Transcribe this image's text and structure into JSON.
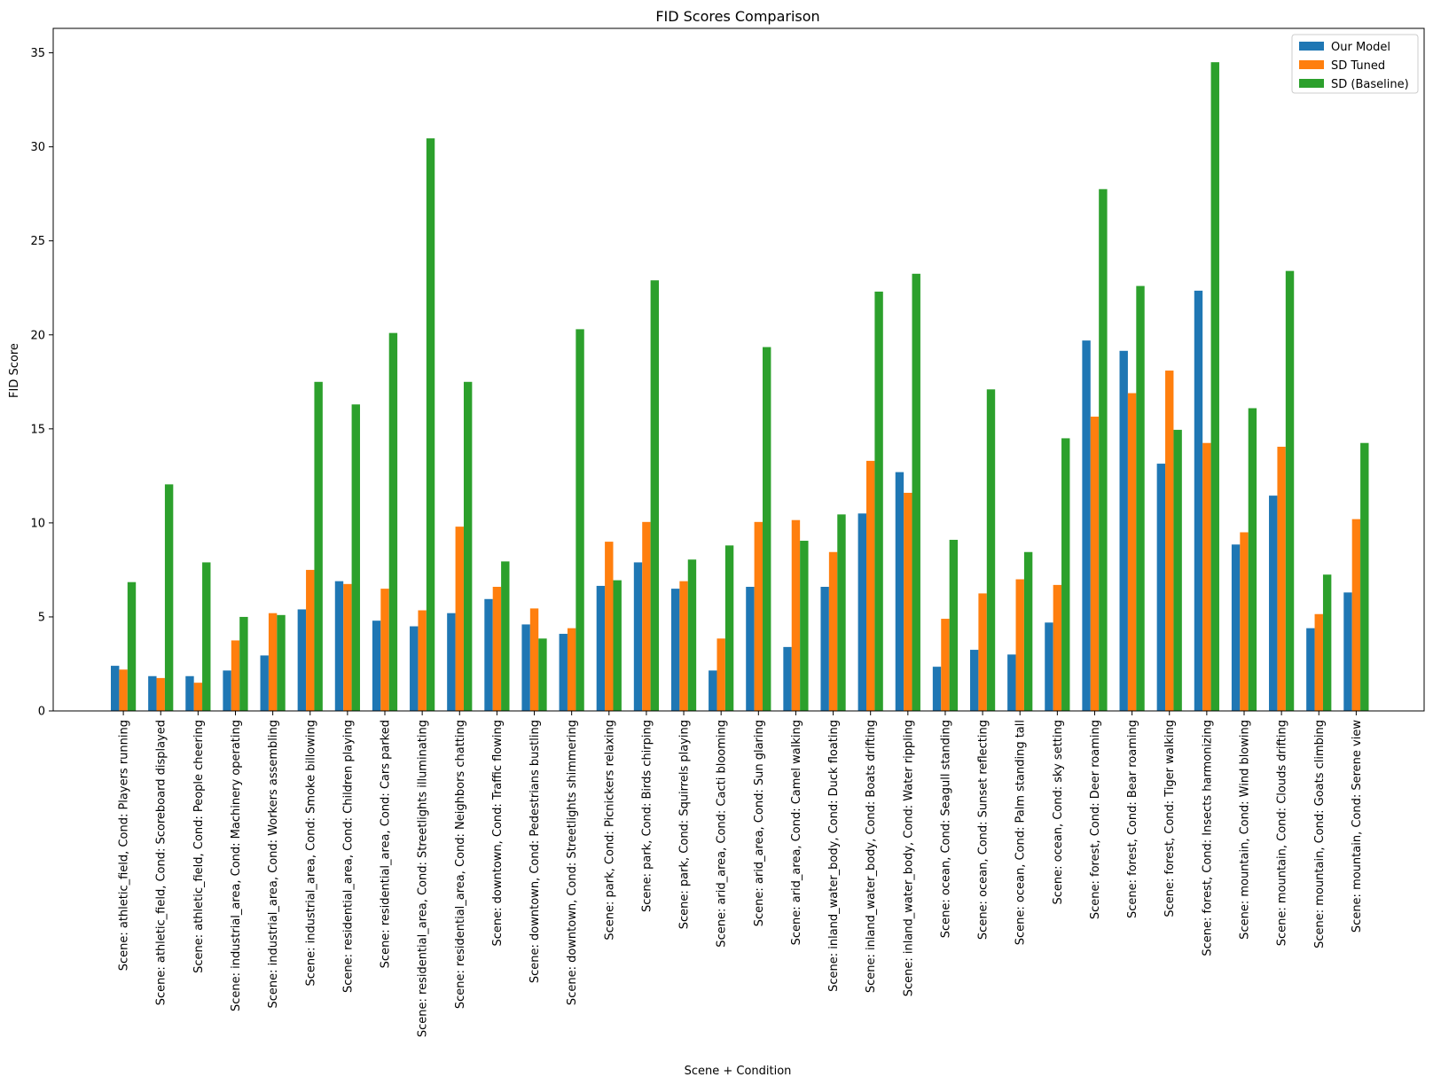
{
  "chart_data": {
    "type": "bar",
    "title": "FID Scores Comparison",
    "xlabel": "Scene + Condition",
    "ylabel": "FID Score",
    "ylim": [
      0,
      36.3
    ],
    "yticks": [
      0,
      5,
      10,
      15,
      20,
      25,
      30,
      35
    ],
    "grid": false,
    "legend_position": "top-right",
    "categories": [
      "Scene: athletic_field, Cond: Players running",
      "Scene: athletic_field, Cond: Scoreboard displayed",
      "Scene: athletic_field, Cond: People cheering",
      "Scene: industrial_area, Cond: Machinery operating",
      "Scene: industrial_area, Cond: Workers assembling",
      "Scene: industrial_area, Cond: Smoke billowing",
      "Scene: residential_area, Cond: Children playing",
      "Scene: residential_area, Cond: Cars parked",
      "Scene: residential_area, Cond: Streetlights illuminating",
      "Scene: residential_area, Cond: Neighbors chatting",
      "Scene: downtown, Cond: Traffic flowing",
      "Scene: downtown, Cond: Pedestrians bustling",
      "Scene: downtown, Cond: Streetlights shimmering",
      "Scene: park, Cond: Picnickers relaxing",
      "Scene: park, Cond: Birds chirping",
      "Scene: park, Cond: Squirrels playing",
      "Scene: arid_area, Cond: Cacti blooming",
      "Scene: arid_area, Cond: Sun glaring",
      "Scene: arid_area, Cond: Camel walking",
      "Scene: inland_water_body, Cond: Duck floating",
      "Scene: inland_water_body, Cond: Boats drifting",
      "Scene: inland_water_body, Cond: Water rippling",
      "Scene: ocean, Cond: Seagull standing",
      "Scene: ocean, Cond: Sunset reflecting",
      "Scene: ocean, Cond: Palm standing tall",
      "Scene: ocean, Cond: sky setting",
      "Scene: forest, Cond: Deer roaming",
      "Scene: forest, Cond: Bear roaming",
      "Scene: forest, Cond: Tiger walking",
      "Scene: forest, Cond: Insects harmonizing",
      "Scene: mountain, Cond: Wind blowing",
      "Scene: mountain, Cond: Clouds drifting",
      "Scene: mountain, Cond: Goats climbing",
      "Scene: mountain, Cond: Serene view"
    ],
    "series": [
      {
        "name": "Our Model",
        "color": "#1f77b4",
        "values": [
          2.4,
          1.85,
          1.85,
          2.15,
          2.95,
          5.4,
          6.9,
          4.8,
          4.5,
          5.2,
          5.95,
          4.6,
          4.1,
          6.65,
          7.9,
          6.5,
          2.15,
          6.6,
          3.4,
          6.6,
          10.5,
          12.7,
          2.35,
          3.25,
          3.0,
          4.7,
          19.7,
          19.15,
          13.15,
          22.35,
          8.85,
          11.45,
          4.4,
          6.3
        ]
      },
      {
        "name": "SD Tuned",
        "color": "#ff7f0e",
        "values": [
          2.2,
          1.75,
          1.5,
          3.75,
          5.2,
          7.5,
          6.75,
          6.5,
          5.35,
          9.8,
          6.6,
          5.45,
          4.4,
          9.0,
          10.05,
          6.9,
          3.85,
          10.05,
          10.15,
          8.45,
          13.3,
          11.6,
          4.9,
          6.25,
          7.0,
          6.7,
          15.65,
          16.9,
          18.1,
          14.25,
          9.5,
          14.05,
          5.15,
          10.2
        ]
      },
      {
        "name": "SD (Baseline)",
        "color": "#2ca02c",
        "values": [
          6.85,
          12.05,
          7.9,
          5.0,
          5.1,
          17.5,
          16.3,
          20.1,
          30.45,
          17.5,
          7.95,
          3.85,
          20.3,
          6.95,
          22.9,
          8.05,
          8.8,
          19.35,
          9.05,
          10.45,
          22.3,
          23.25,
          9.1,
          17.1,
          8.45,
          14.5,
          27.75,
          22.6,
          14.95,
          34.5,
          16.1,
          23.4,
          7.25,
          14.25
        ]
      }
    ]
  }
}
